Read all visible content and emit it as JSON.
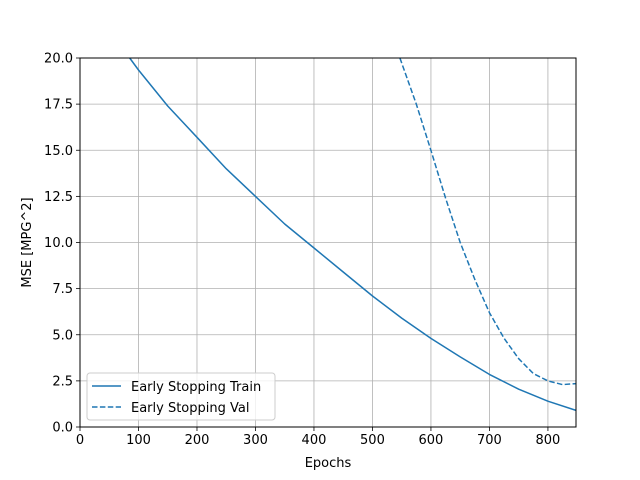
{
  "chart_data": {
    "type": "line",
    "title": "",
    "xlabel": "Epochs",
    "ylabel": "MSE [MPG^2]",
    "xlim": [
      0,
      848
    ],
    "ylim": [
      0,
      20
    ],
    "xticks": [
      0,
      100,
      200,
      300,
      400,
      500,
      600,
      700,
      800
    ],
    "yticks": [
      0,
      2.5,
      5,
      7.5,
      10,
      12.5,
      15,
      17.5,
      20
    ],
    "xtick_labels": [
      "0",
      "100",
      "200",
      "300",
      "400",
      "500",
      "600",
      "700",
      "800"
    ],
    "ytick_labels": [
      "0.0",
      "2.5",
      "5.0",
      "7.5",
      "10.0",
      "12.5",
      "15.0",
      "17.5",
      "20.0"
    ],
    "grid": true,
    "legend_position": "lower-left",
    "series": [
      {
        "name": "Early Stopping Train",
        "style": "solid",
        "color": "#1f77b4",
        "x": [
          85,
          100,
          150,
          200,
          250,
          300,
          350,
          400,
          450,
          500,
          550,
          600,
          650,
          700,
          750,
          800,
          848
        ],
        "y": [
          20.0,
          19.35,
          17.4,
          15.7,
          14.0,
          12.5,
          11.0,
          9.7,
          8.4,
          7.1,
          5.9,
          4.8,
          3.8,
          2.85,
          2.05,
          1.4,
          0.9
        ]
      },
      {
        "name": "Early Stopping Val",
        "style": "dashed",
        "color": "#1f77b4",
        "x": [
          547,
          575,
          600,
          625,
          650,
          675,
          700,
          725,
          750,
          775,
          800,
          825,
          848
        ],
        "y": [
          20.0,
          17.5,
          15.0,
          12.4,
          10.0,
          8.0,
          6.2,
          4.8,
          3.7,
          2.9,
          2.5,
          2.3,
          2.35
        ]
      }
    ]
  }
}
